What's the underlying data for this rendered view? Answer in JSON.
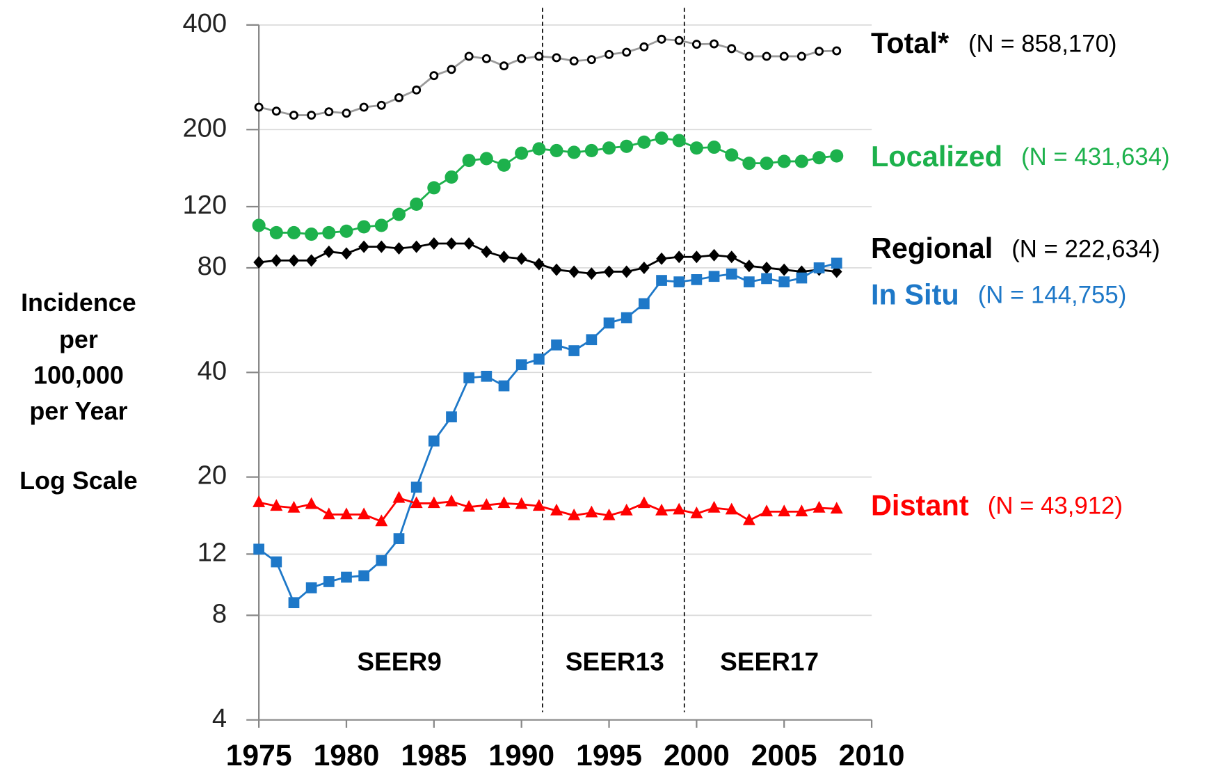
{
  "chart_data": {
    "type": "line",
    "yscale": "log",
    "grid": true,
    "ylabel": [
      "Incidence",
      "per",
      "100,000",
      "per Year"
    ],
    "ylabel_note": "Log Scale",
    "x": [
      1975,
      1976,
      1977,
      1978,
      1979,
      1980,
      1981,
      1982,
      1983,
      1984,
      1985,
      1986,
      1987,
      1988,
      1989,
      1990,
      1991,
      1992,
      1993,
      1994,
      1995,
      1996,
      1997,
      1998,
      1999,
      2000,
      2001,
      2002,
      2003,
      2004,
      2005,
      2006,
      2007,
      2008
    ],
    "xlim": [
      1975,
      2010
    ],
    "xticks": [
      1975,
      1980,
      1985,
      1990,
      1995,
      2000,
      2005,
      2010
    ],
    "ylim": [
      4,
      400
    ],
    "yticks": [
      4,
      8,
      12,
      20,
      40,
      80,
      120,
      200,
      400
    ],
    "dividers": [
      1991.2,
      1999.3
    ],
    "regions": [
      "SEER9",
      "SEER13",
      "SEER17"
    ],
    "series": [
      {
        "name": "Total*",
        "note": "(N = 858,170)",
        "color": "#000000",
        "marker": "open-circle",
        "values": [
          232,
          226,
          220,
          220,
          225,
          223,
          232,
          235,
          247,
          260,
          286,
          298,
          325,
          320,
          305,
          320,
          325,
          322,
          315,
          318,
          329,
          334,
          346,
          364,
          361,
          352,
          353,
          342,
          325,
          325,
          325,
          325,
          336,
          337
        ]
      },
      {
        "name": "Localized",
        "note": "(N = 431,634)",
        "color": "#1db14c",
        "marker": "circle",
        "values": [
          106,
          101,
          101,
          100,
          101,
          102,
          105,
          106,
          114,
          122,
          136,
          146,
          163,
          165,
          158,
          171,
          176,
          174,
          172,
          174,
          177,
          179,
          184,
          189,
          186,
          177,
          178,
          169,
          160,
          160,
          162,
          162,
          166,
          168
        ]
      },
      {
        "name": "Regional",
        "note": "(N = 222,634)",
        "color": "#000000",
        "marker": "diamond",
        "values": [
          83,
          84,
          84,
          84,
          89,
          88,
          92,
          92,
          91,
          92,
          94,
          94,
          94,
          89,
          86,
          85,
          82,
          79,
          78,
          77,
          78,
          78,
          80,
          85,
          86,
          86,
          87,
          86,
          81,
          80,
          79,
          78,
          79,
          78
        ]
      },
      {
        "name": "In Situ",
        "note": "(N = 144,755)",
        "color": "#1e78c8",
        "marker": "square",
        "values": [
          12.4,
          11.4,
          8.7,
          9.6,
          10.0,
          10.3,
          10.4,
          11.5,
          13.3,
          18.7,
          25.4,
          29.8,
          38.6,
          39.0,
          36.6,
          42.1,
          43.7,
          48.0,
          46.2,
          49.7,
          55.5,
          57.5,
          63.1,
          73.6,
          72.9,
          74.0,
          75.6,
          76.8,
          72.9,
          74.5,
          72.9,
          74.8,
          80.0,
          82.5
        ]
      },
      {
        "name": "Distant",
        "note": "(N = 43,912)",
        "color": "#ff0000",
        "marker": "triangle",
        "values": [
          16.9,
          16.5,
          16.3,
          16.7,
          15.6,
          15.6,
          15.6,
          14.9,
          17.4,
          16.8,
          16.8,
          17.0,
          16.4,
          16.6,
          16.8,
          16.7,
          16.5,
          16.0,
          15.5,
          15.8,
          15.5,
          16.0,
          16.8,
          16.0,
          16.1,
          15.7,
          16.3,
          16.1,
          15.0,
          15.9,
          15.9,
          15.9,
          16.3,
          16.2
        ]
      }
    ]
  }
}
